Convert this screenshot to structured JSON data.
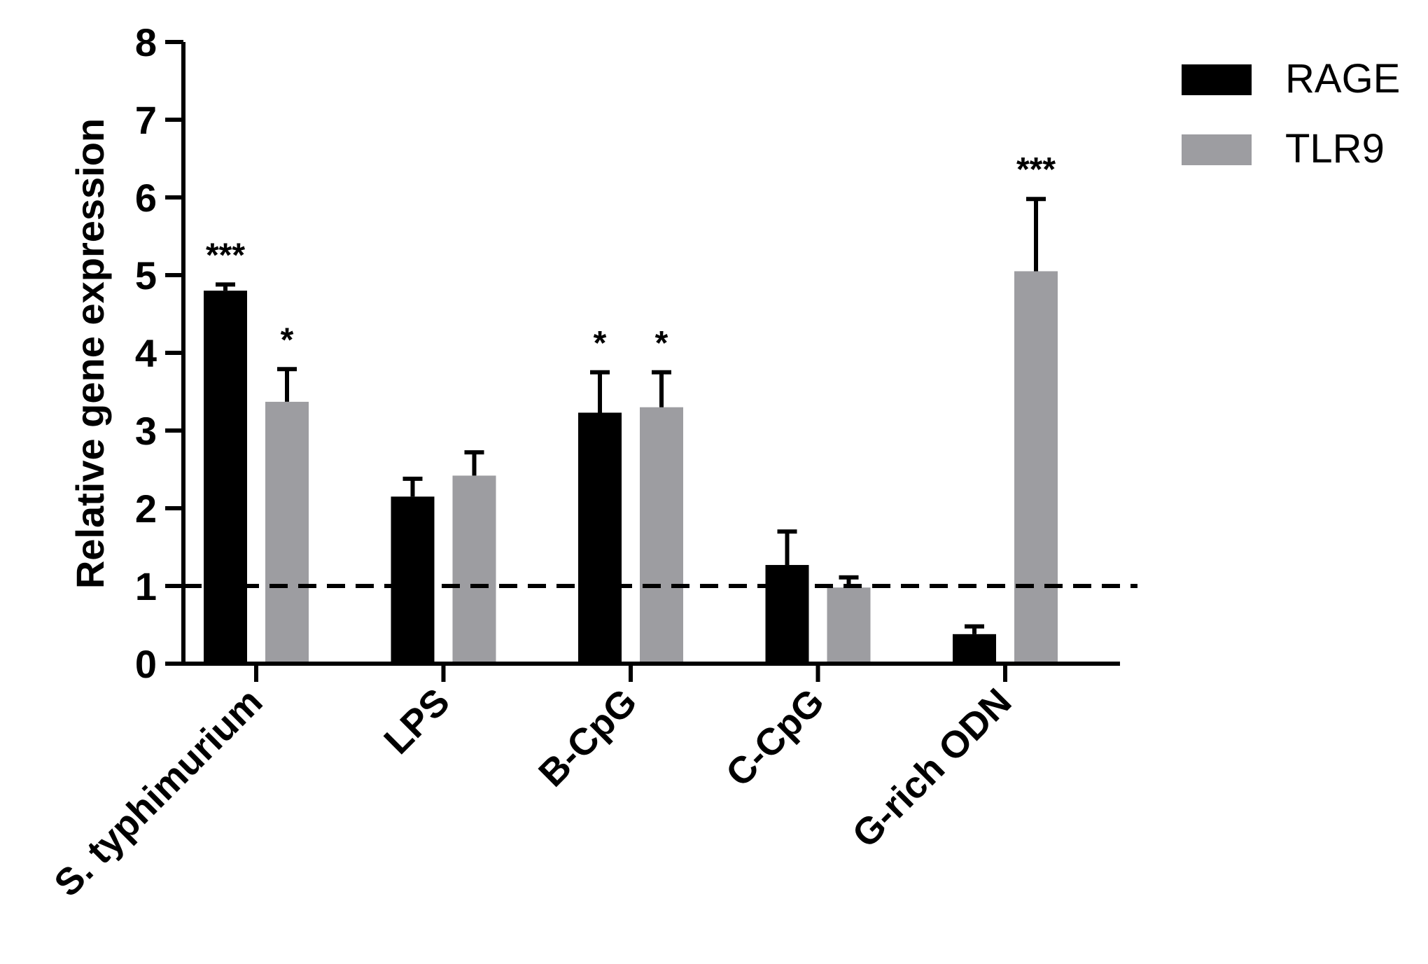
{
  "chart_data": {
    "type": "bar",
    "title": "",
    "xlabel": "",
    "ylabel": "Relative gene expression",
    "ylim": [
      0,
      8
    ],
    "yticks": [
      "0",
      "1",
      "2",
      "3",
      "4",
      "5",
      "6",
      "7",
      "8"
    ],
    "categories": [
      "S. typhimurium",
      "LPS",
      "B-CpG",
      "C-CpG",
      "G-rich ODN"
    ],
    "series": [
      {
        "name": "RAGE",
        "color": "#000000",
        "values": [
          4.8,
          2.15,
          3.23,
          1.27,
          0.38
        ],
        "errors": [
          0.08,
          0.23,
          0.52,
          0.43,
          0.1
        ],
        "annotations": [
          "***",
          "",
          "*",
          "",
          ""
        ]
      },
      {
        "name": "TLR9",
        "color": "#9d9da1",
        "values": [
          3.37,
          2.42,
          3.3,
          0.98,
          5.05
        ],
        "errors": [
          0.42,
          0.3,
          0.45,
          0.13,
          0.93
        ],
        "annotations": [
          "*",
          "",
          "*",
          "",
          "***"
        ]
      }
    ],
    "reference_line": {
      "y": 1,
      "style": "dashed"
    },
    "legend": {
      "position": "top-right"
    },
    "grid": false
  }
}
